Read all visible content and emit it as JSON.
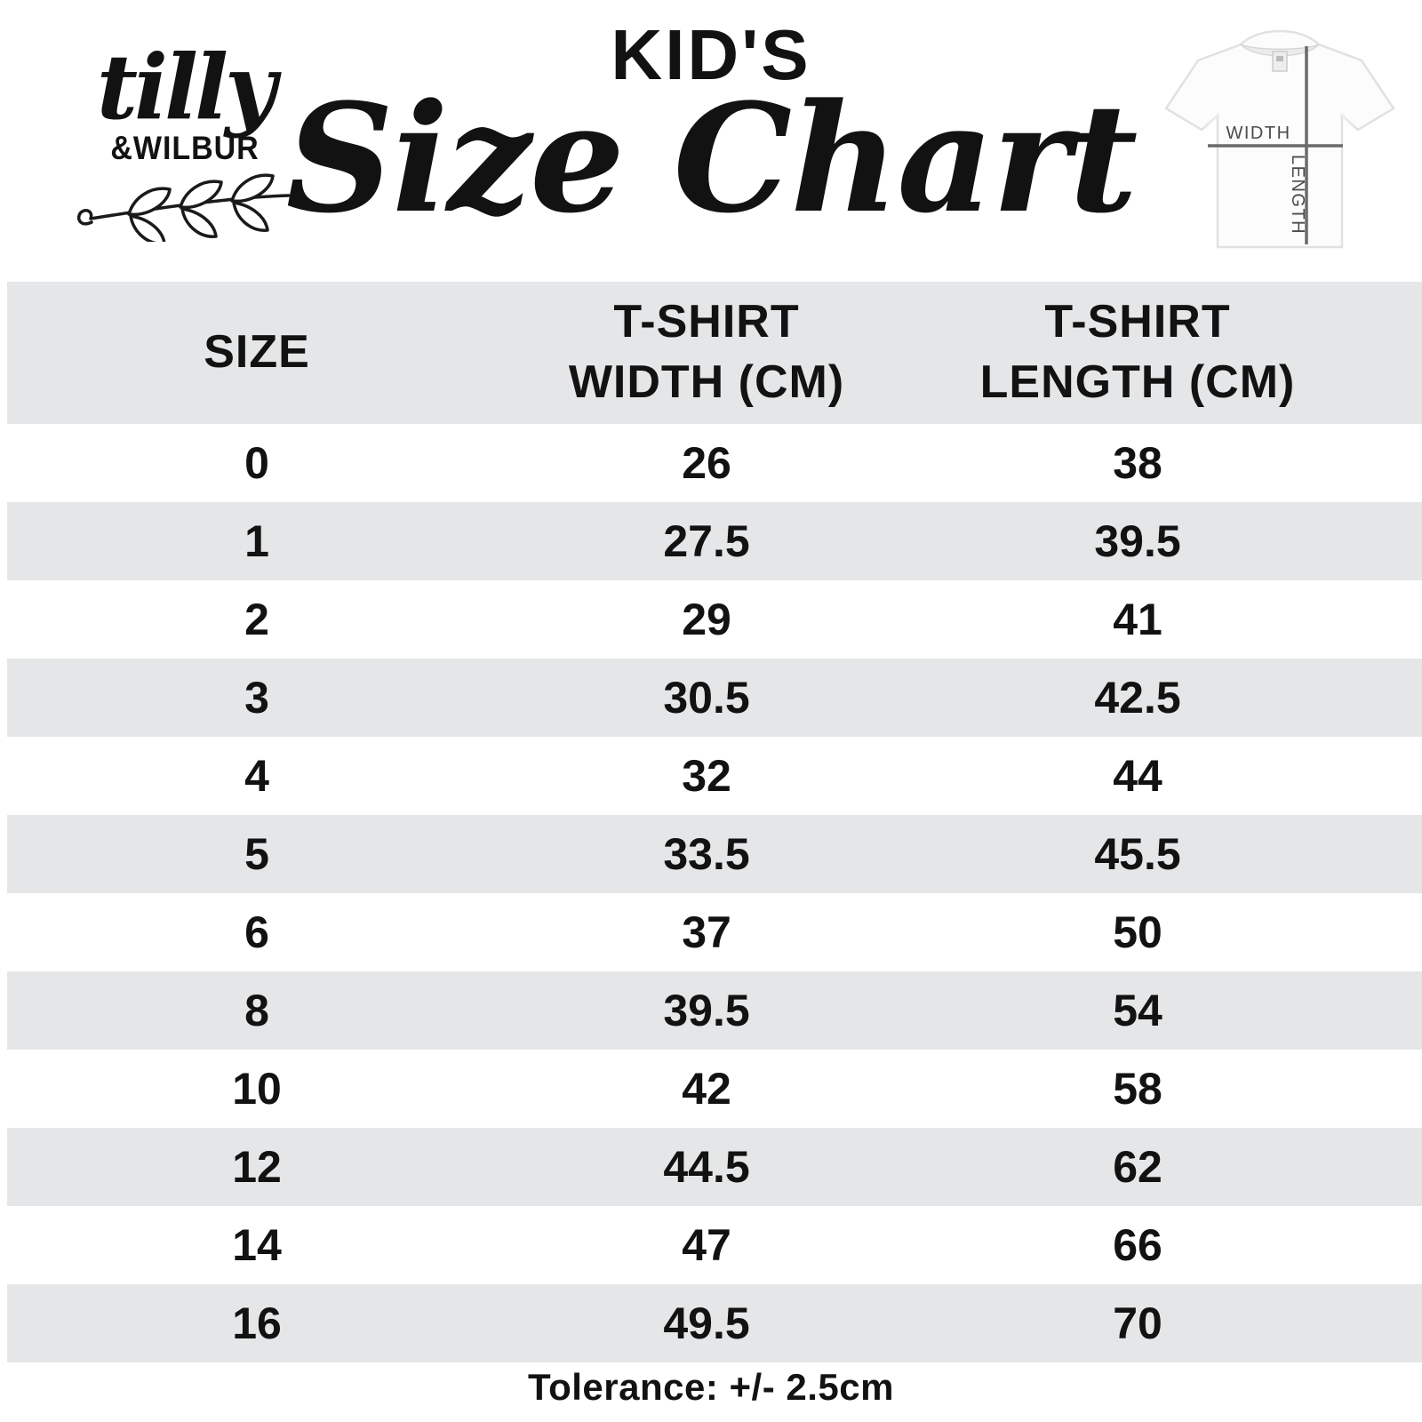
{
  "brand": {
    "script_name": "tilly",
    "caps_name": "&WILBUR"
  },
  "header": {
    "kicker": "KID'S",
    "title": "Size Chart"
  },
  "tshirt_diagram": {
    "width_label": "WIDTH",
    "length_label": "LENGTH"
  },
  "table": {
    "columns": [
      "SIZE",
      "T-SHIRT\nWIDTH (CM)",
      "T-SHIRT\nLENGTH (CM)"
    ],
    "rows": [
      {
        "size": "0",
        "width_cm": "26",
        "length_cm": "38"
      },
      {
        "size": "1",
        "width_cm": "27.5",
        "length_cm": "39.5"
      },
      {
        "size": "2",
        "width_cm": "29",
        "length_cm": "41"
      },
      {
        "size": "3",
        "width_cm": "30.5",
        "length_cm": "42.5"
      },
      {
        "size": "4",
        "width_cm": "32",
        "length_cm": "44"
      },
      {
        "size": "5",
        "width_cm": "33.5",
        "length_cm": "45.5"
      },
      {
        "size": "6",
        "width_cm": "37",
        "length_cm": "50"
      },
      {
        "size": "8",
        "width_cm": "39.5",
        "length_cm": "54"
      },
      {
        "size": "10",
        "width_cm": "42",
        "length_cm": "58"
      },
      {
        "size": "12",
        "width_cm": "44.5",
        "length_cm": "62"
      },
      {
        "size": "14",
        "width_cm": "47",
        "length_cm": "66"
      },
      {
        "size": "16",
        "width_cm": "49.5",
        "length_cm": "70"
      }
    ]
  },
  "footer": {
    "tolerance": "Tolerance: +/- 2.5cm"
  },
  "colors": {
    "row_alt": "#e5e6e7",
    "ink": "#121212",
    "measure_line": "#6a6a6a"
  }
}
